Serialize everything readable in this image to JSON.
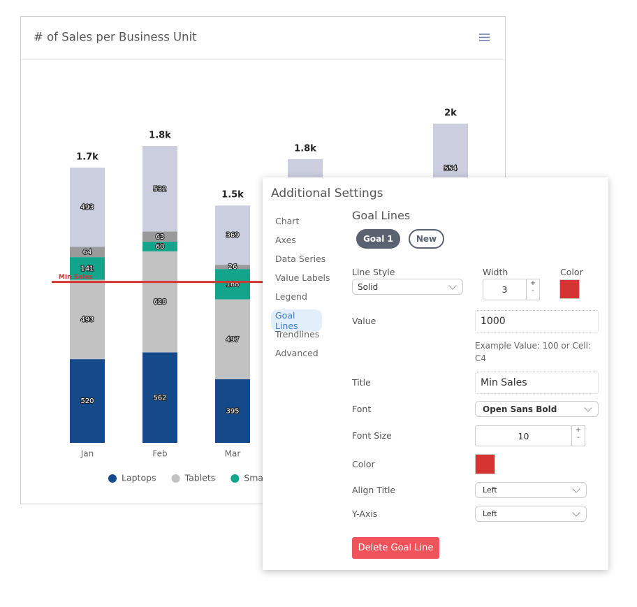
{
  "chart": {
    "title": "# of Sales per Business Unit",
    "categories": [
      "Jan",
      "Feb",
      "Mar",
      null,
      null,
      null
    ],
    "series": [
      {
        "name": "Laptops",
        "color": "#154a8a",
        "values": [
          520,
          562,
          395,
          null,
          null,
          null
        ]
      },
      {
        "name": "Tablets",
        "color": "#c2c2c2",
        "values": [
          493,
          628,
          497,
          null,
          null,
          null
        ]
      },
      {
        "name": "Smar",
        "color": "#12a58c",
        "values": [
          141,
          60,
          188,
          null,
          null,
          null
        ]
      },
      {
        "color": "#9a9a9a",
        "values": [
          64,
          63,
          26,
          null,
          null,
          null
        ]
      },
      {
        "color": "#cbcedf",
        "values": [
          493,
          532,
          369,
          null,
          null,
          554
        ]
      }
    ],
    "totals": [
      1711,
      1845,
      1475,
      1763,
      null,
      1984
    ],
    "total_labels": [
      "1.7k",
      "1.8k",
      "1.5k",
      "1.8k",
      null,
      "2k"
    ]
  },
  "settings": {
    "title": "Additional Settings",
    "nav": [
      "Chart",
      "Axes",
      "Data Series",
      "Value Labels",
      "Legend",
      "Goal Lines",
      "Trendlines",
      "Advanced"
    ],
    "active_nav": 5,
    "heading": "Goal Lines",
    "goals": [
      "Goal 1"
    ],
    "new_button": "New",
    "line_style": {
      "label": "Line Style",
      "value": "Solid"
    },
    "width": {
      "label": "Width",
      "value": 3
    },
    "color": {
      "label": "Color",
      "value": "#d63333"
    },
    "value": {
      "label": "Value",
      "value": 1000,
      "hint": "Example Value: 100 or Cell: C4"
    },
    "goal_title": {
      "label": "Title",
      "value": "Min Sales"
    },
    "font": {
      "label": "Font",
      "value": "Open Sans Bold"
    },
    "font_size": {
      "label": "Font Size",
      "value": 10
    },
    "font_color": {
      "label": "Color",
      "value": "#d63333"
    },
    "align_title": {
      "label": "Align Title",
      "value": "Left"
    },
    "y_axis": {
      "label": "Y-Axis",
      "value": "Left"
    },
    "delete_button": "Delete Goal Line"
  }
}
